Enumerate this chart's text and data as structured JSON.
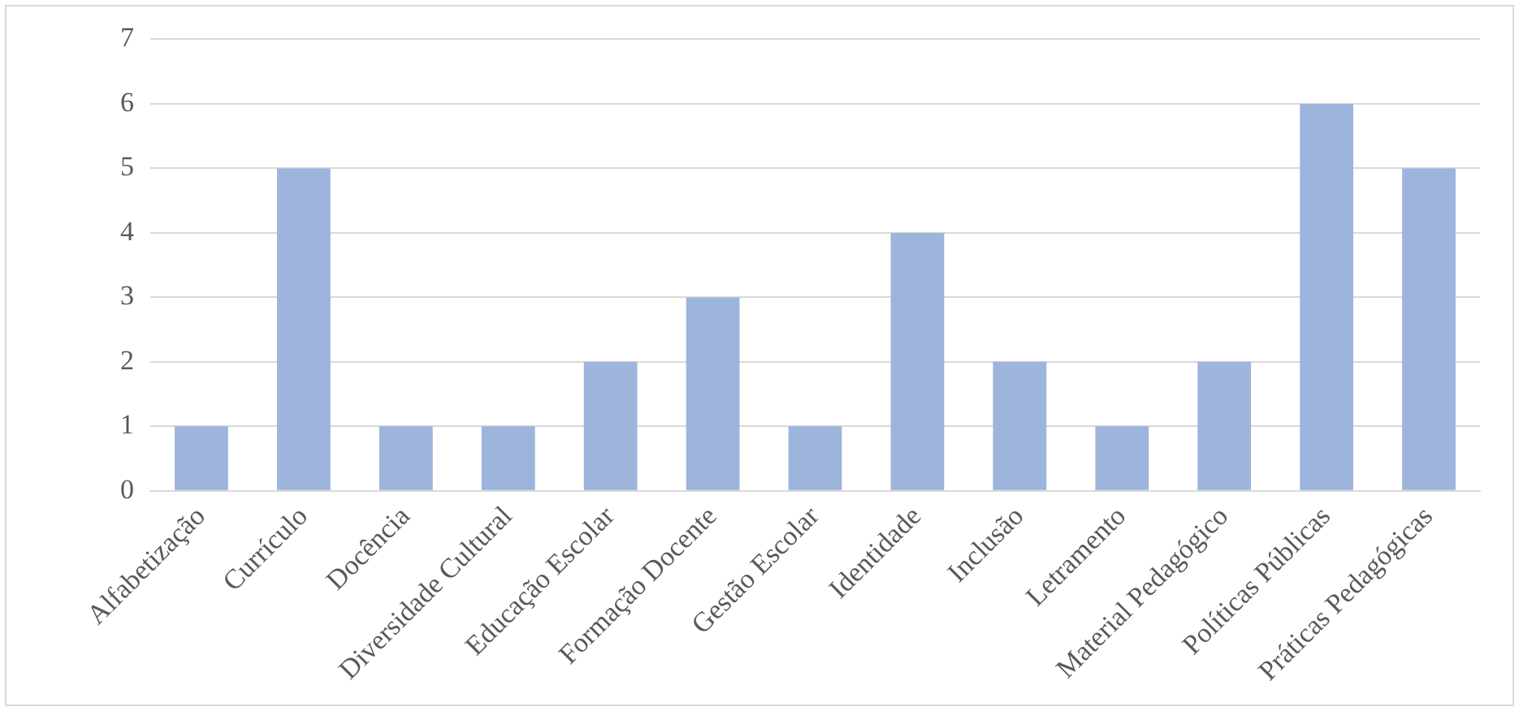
{
  "chart_data": {
    "type": "bar",
    "categories": [
      "Alfabetização",
      "Currículo",
      "Docência",
      "Diversidade Cultural",
      "Educação Escolar",
      "Formação Docente",
      "Gestão Escolar",
      "Identidade",
      "Inclusão",
      "Letramento",
      "Material Pedagógico",
      "Políticas Públicas",
      "Práticas Pedagógicas"
    ],
    "values": [
      1,
      5,
      1,
      1,
      2,
      3,
      1,
      4,
      2,
      1,
      2,
      6,
      5
    ],
    "color": "#9db4dc",
    "ylim": [
      0,
      7
    ],
    "yticks": [
      0,
      1,
      2,
      3,
      4,
      5,
      6,
      7
    ],
    "grid": "y",
    "legend": false
  }
}
